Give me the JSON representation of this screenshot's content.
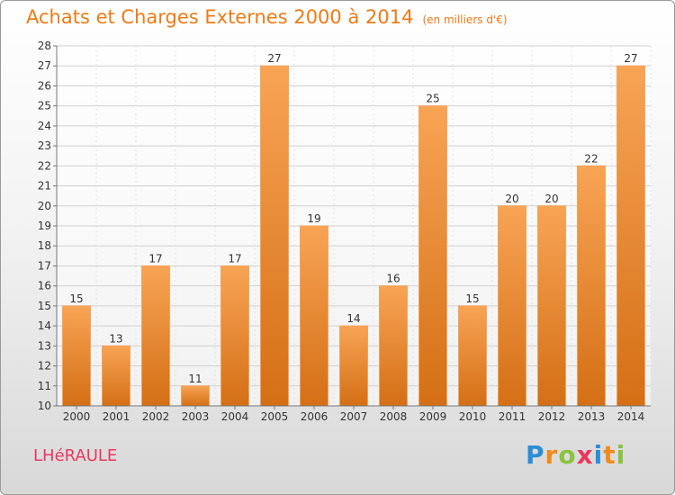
{
  "header": {
    "title": "Achats et Charges Externes 2000 à 2014",
    "unit": "(en milliers d'€)"
  },
  "footer": {
    "place": "LHéRAULE",
    "logo_letters": [
      {
        "char": "P",
        "color": "#2a8ed6"
      },
      {
        "char": "r",
        "color": "#f08a1c"
      },
      {
        "char": "o",
        "color": "#8ac33e"
      },
      {
        "char": "x",
        "color": "#e8385c"
      },
      {
        "char": "i",
        "color": "#2a8ed6"
      },
      {
        "char": "t",
        "color": "#f08a1c"
      },
      {
        "char": "i",
        "color": "#8ac33e"
      }
    ]
  },
  "colors": {
    "accent": "#ef7a15",
    "bar_top": "#f8a455",
    "bar_bottom": "#d46f15",
    "place": "#e8385c"
  },
  "chart_data": {
    "type": "bar",
    "categories": [
      "2000",
      "2001",
      "2002",
      "2003",
      "2004",
      "2005",
      "2006",
      "2007",
      "2008",
      "2009",
      "2010",
      "2011",
      "2012",
      "2013",
      "2014"
    ],
    "values": [
      15,
      13,
      17,
      11,
      17,
      27,
      19,
      14,
      16,
      25,
      15,
      20,
      20,
      22,
      27
    ],
    "ylim": [
      10,
      28
    ],
    "yticks": [
      10,
      11,
      12,
      13,
      14,
      15,
      16,
      17,
      18,
      19,
      20,
      21,
      22,
      23,
      24,
      25,
      26,
      27,
      28
    ],
    "grid": true,
    "data_labels": true
  }
}
